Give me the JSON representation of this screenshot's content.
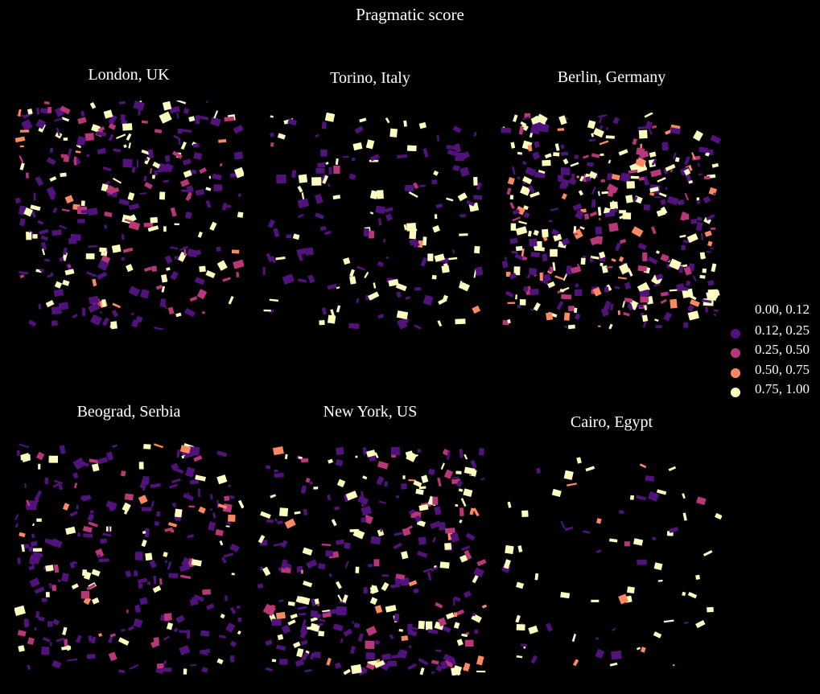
{
  "title": "Pragmatic score",
  "colors": {
    "background": "#000000",
    "text": "#ffffff"
  },
  "chart_data": {
    "type": "choropleth-map",
    "title": "Pragmatic score",
    "variable": "Pragmatic score",
    "legend": {
      "placement": "right",
      "entries": [
        {
          "label": "0.00, 0.12",
          "color": "#000004",
          "range": [
            0.0,
            0.12
          ]
        },
        {
          "label": "0.12, 0.25",
          "color": "#51127c",
          "range": [
            0.12,
            0.25
          ]
        },
        {
          "label": "0.25, 0.50",
          "color": "#b73779",
          "range": [
            0.25,
            0.5
          ]
        },
        {
          "label": "0.50, 0.75",
          "color": "#fc8961",
          "range": [
            0.5,
            0.75
          ]
        },
        {
          "label": "0.75, 1.00",
          "color": "#fcfdbf",
          "range": [
            0.75,
            1.0
          ]
        }
      ]
    },
    "panels": [
      {
        "title": "London, UK",
        "density": 0.55,
        "mix": [
          0.52,
          0.16,
          0.05,
          0.27
        ]
      },
      {
        "title": "Torino, Italy",
        "density": 0.32,
        "mix": [
          0.5,
          0.02,
          0.01,
          0.47
        ]
      },
      {
        "title": "Berlin, Germany",
        "density": 0.75,
        "mix": [
          0.38,
          0.14,
          0.1,
          0.38
        ]
      },
      {
        "title": "Beograd, Serbia",
        "density": 0.5,
        "mix": [
          0.6,
          0.12,
          0.06,
          0.22
        ]
      },
      {
        "title": "New York, US",
        "density": 0.58,
        "mix": [
          0.52,
          0.12,
          0.05,
          0.31
        ]
      },
      {
        "title": "Cairo, Egypt",
        "density": 0.14,
        "mix": [
          0.35,
          0.05,
          0.05,
          0.55
        ]
      }
    ]
  }
}
